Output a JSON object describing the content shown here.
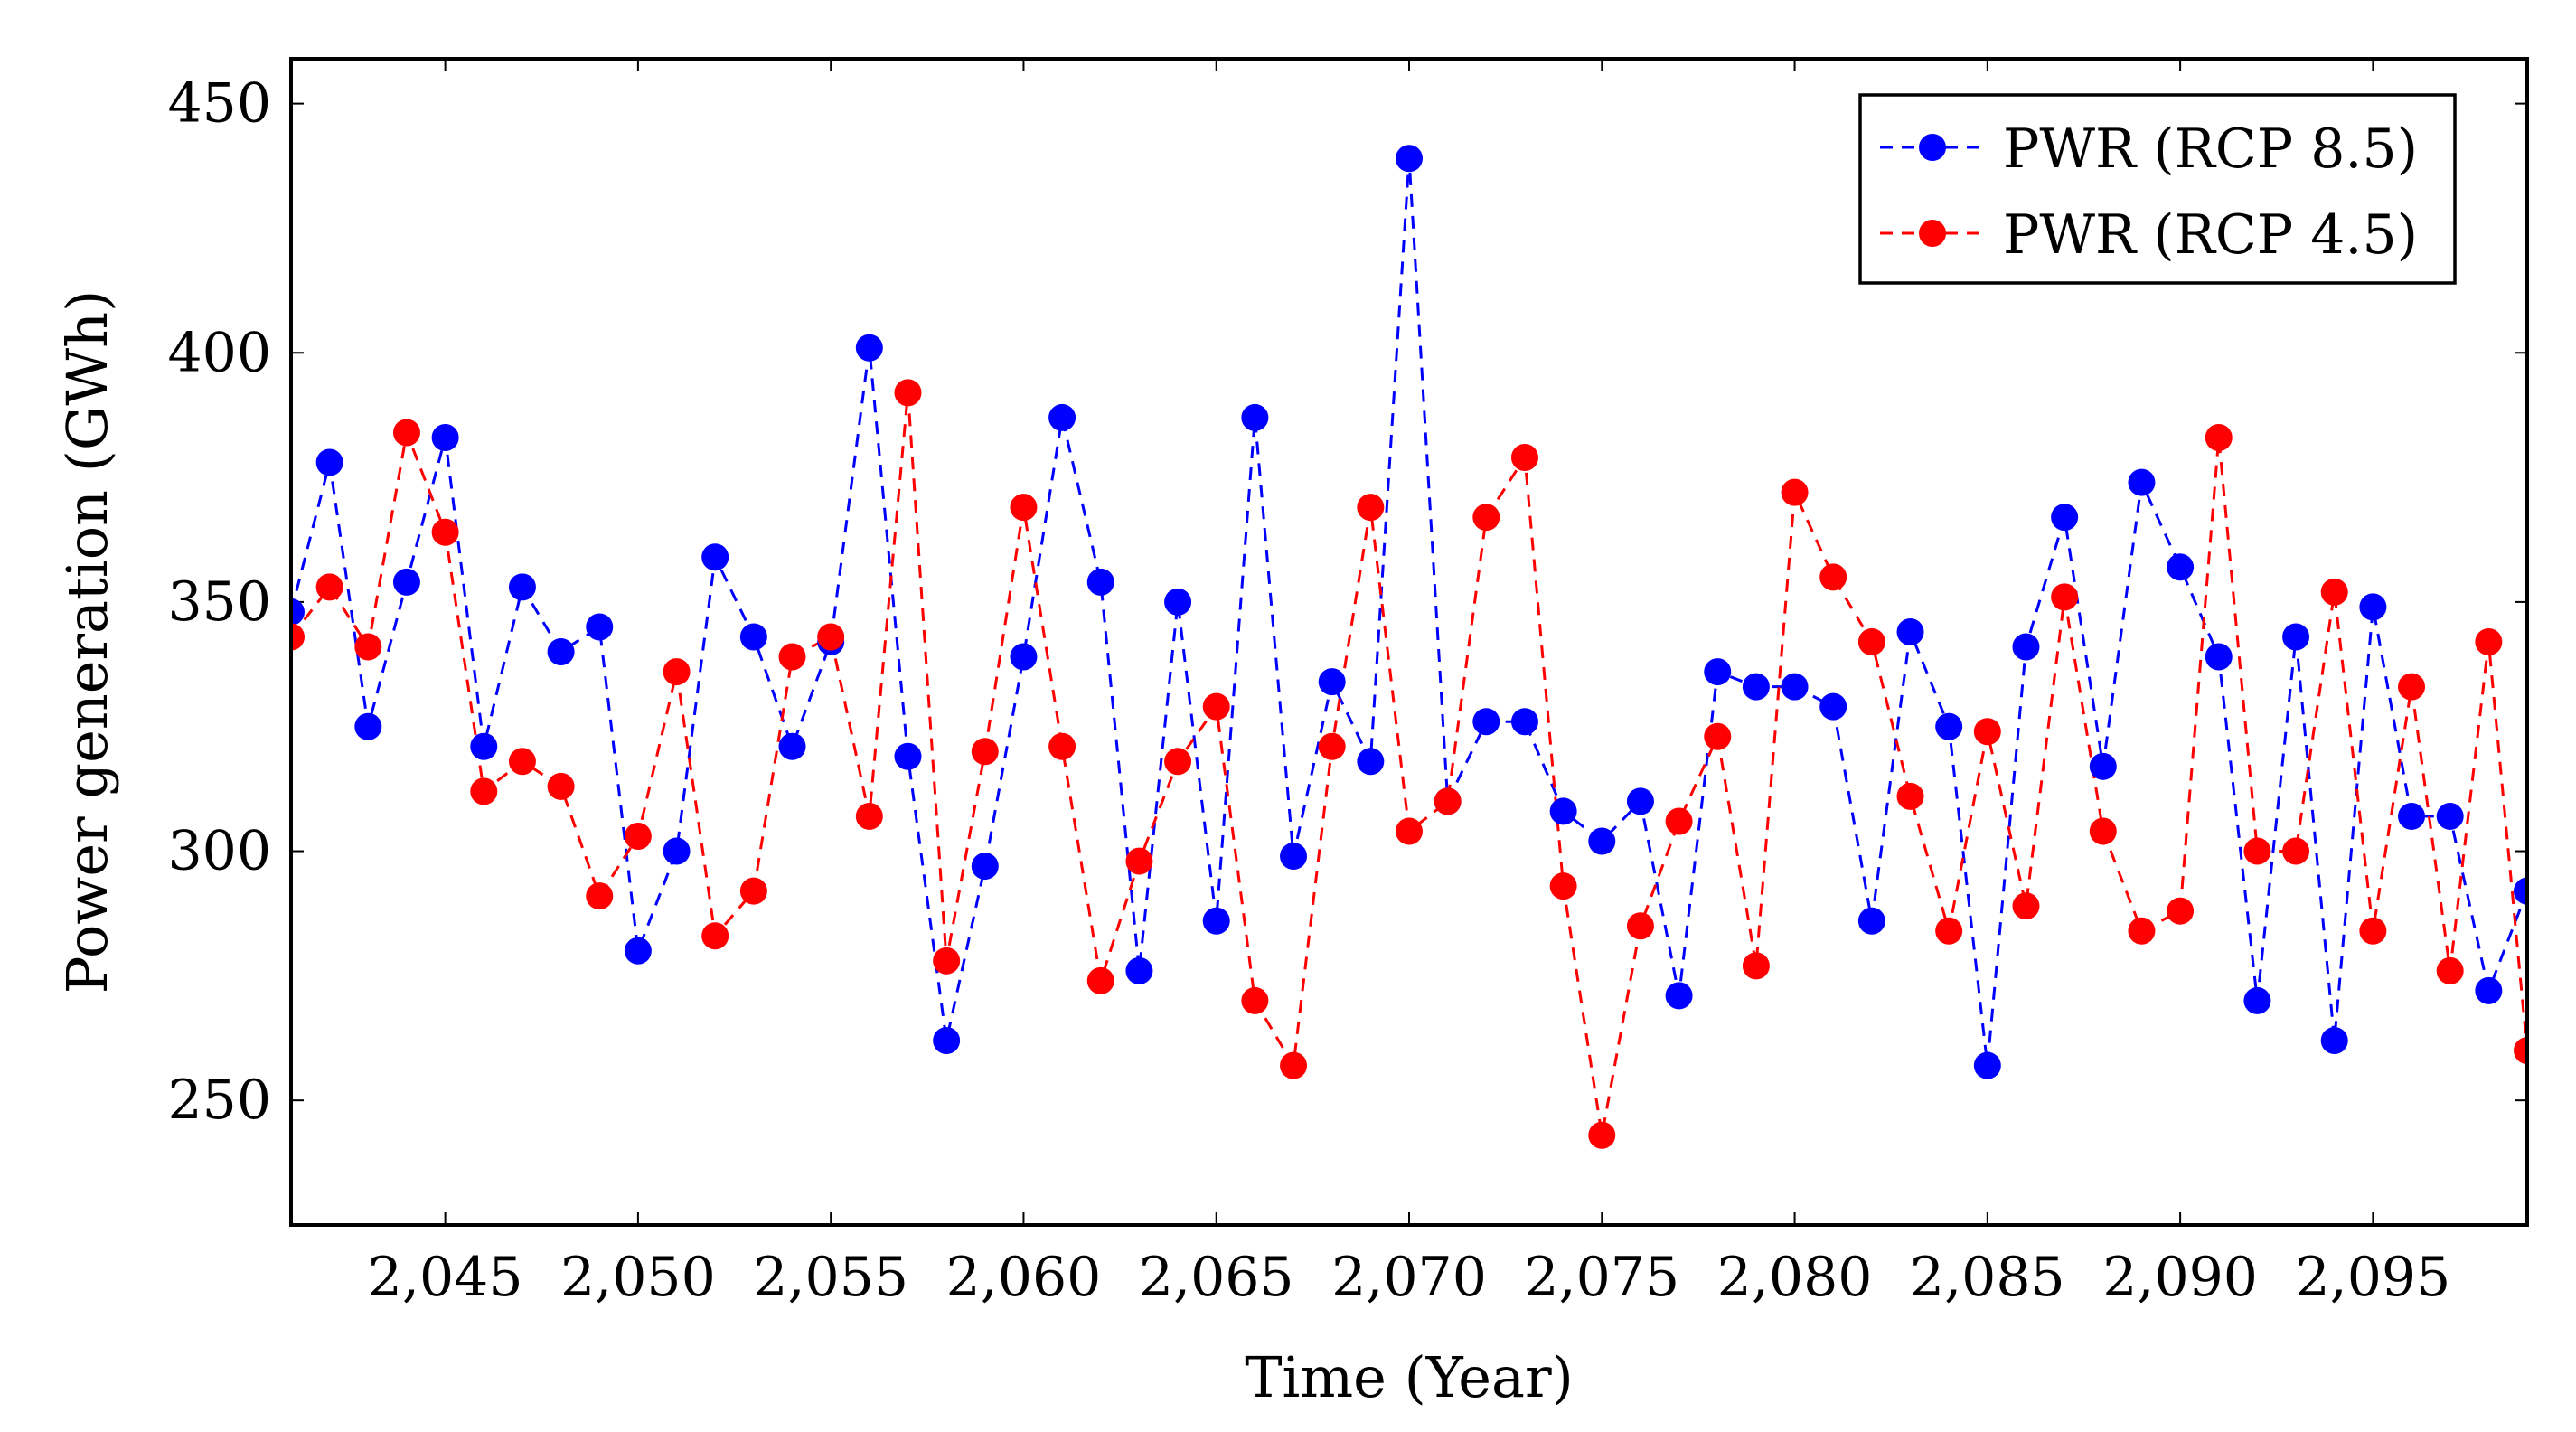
{
  "chart_data": {
    "type": "line",
    "title": "",
    "xlabel": "Time (Year)",
    "ylabel": "Power generation (GWh)",
    "xlim": [
      2041,
      2099
    ],
    "ylim": [
      225,
      459
    ],
    "xticks": [
      2045,
      2050,
      2055,
      2060,
      2065,
      2070,
      2075,
      2080,
      2085,
      2090,
      2095
    ],
    "xtick_labels": [
      "2,045",
      "2,050",
      "2,055",
      "2,060",
      "2,065",
      "2,070",
      "2,075",
      "2,080",
      "2,085",
      "2,090",
      "2,095"
    ],
    "yticks": [
      250,
      300,
      350,
      400,
      450
    ],
    "ytick_labels": [
      "250",
      "300",
      "350",
      "400",
      "450"
    ],
    "legend_position": "top-right",
    "x": [
      2041,
      2042,
      2043,
      2044,
      2045,
      2046,
      2047,
      2048,
      2049,
      2050,
      2051,
      2052,
      2053,
      2054,
      2055,
      2056,
      2057,
      2058,
      2059,
      2060,
      2061,
      2062,
      2063,
      2064,
      2065,
      2066,
      2067,
      2068,
      2069,
      2070,
      2071,
      2072,
      2073,
      2074,
      2075,
      2076,
      2077,
      2078,
      2079,
      2080,
      2081,
      2082,
      2083,
      2084,
      2085,
      2086,
      2087,
      2088,
      2089,
      2090,
      2091,
      2092,
      2093,
      2094,
      2095,
      2096,
      2097,
      2098,
      2099
    ],
    "series": [
      {
        "name": "PWR (RCP 8.5)",
        "color": "#0000ff",
        "values": [
          348,
          378,
          325,
          354,
          383,
          321,
          353,
          340,
          345,
          280,
          300,
          359,
          343,
          321,
          342,
          401,
          319,
          262,
          297,
          339,
          387,
          354,
          276,
          350,
          286,
          387,
          299,
          334,
          318,
          439,
          310,
          326,
          326,
          308,
          302,
          310,
          271,
          336,
          333,
          333,
          329,
          286,
          344,
          325,
          257,
          341,
          367,
          317,
          374,
          357,
          339,
          270,
          343,
          262,
          349,
          307,
          307,
          272,
          292
        ]
      },
      {
        "name": "PWR (RCP 4.5)",
        "color": "#ff0000",
        "values": [
          343,
          353,
          341,
          384,
          364,
          312,
          318,
          313,
          291,
          303,
          336,
          283,
          292,
          339,
          343,
          307,
          392,
          278,
          320,
          369,
          321,
          274,
          298,
          318,
          329,
          270,
          257,
          321,
          369,
          304,
          310,
          367,
          379,
          293,
          243,
          285,
          306,
          323,
          277,
          372,
          355,
          342,
          311,
          284,
          324,
          289,
          351,
          304,
          284,
          288,
          383,
          300,
          300,
          352,
          284,
          333,
          276,
          342,
          260
        ]
      }
    ]
  }
}
